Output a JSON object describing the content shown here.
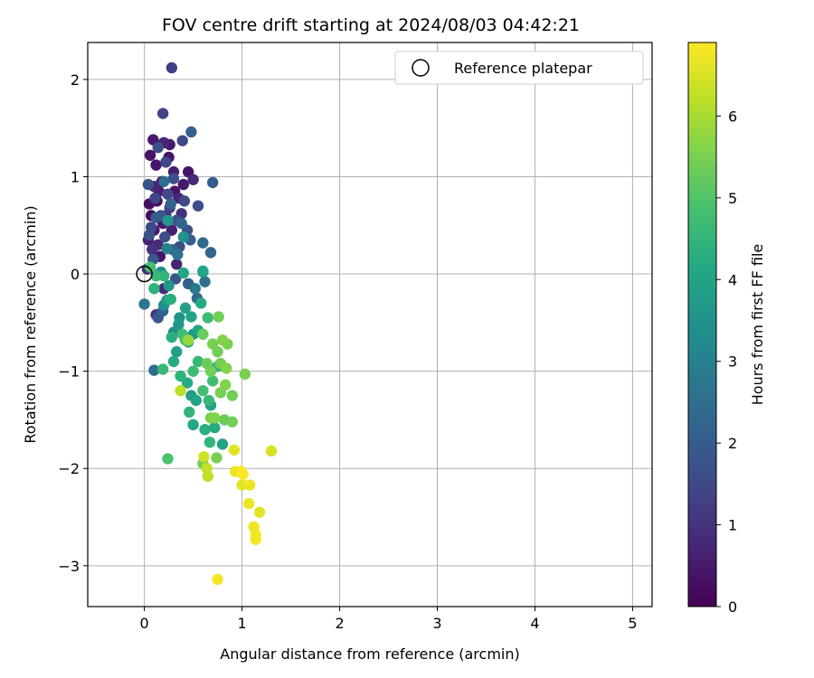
{
  "chart_data": {
    "type": "scatter",
    "title": "FOV centre drift starting at 2024/08/03 04:42:21",
    "xlabel": "Angular distance from reference (arcmin)",
    "ylabel": "Rotation from reference (arcmin)",
    "xlim": [
      -0.58,
      5.2
    ],
    "ylim": [
      -3.42,
      2.38
    ],
    "xticks": [
      0,
      1,
      2,
      3,
      4,
      5
    ],
    "yticks": [
      2,
      1,
      0,
      -1,
      -2,
      -3
    ],
    "grid": true,
    "legend": {
      "placement": "top-right",
      "entries": [
        "Reference platepar"
      ]
    },
    "reference_point": {
      "x": 0,
      "y": 0
    },
    "colorbar": {
      "label": "Hours from first FF file",
      "range": [
        0,
        6.9
      ],
      "ticks": [
        0,
        1,
        2,
        3,
        4,
        5,
        6
      ],
      "colormap": "viridis"
    },
    "points": [
      {
        "x": 0.05,
        "y": 0.72,
        "h": 0.3
      },
      {
        "x": 0.09,
        "y": 1.38,
        "h": 0.5
      },
      {
        "x": 0.12,
        "y": 1.12,
        "h": 0.4
      },
      {
        "x": 0.15,
        "y": 0.85,
        "h": 0.6
      },
      {
        "x": 0.2,
        "y": 1.35,
        "h": 0.7
      },
      {
        "x": 0.07,
        "y": 0.6,
        "h": 0.2
      },
      {
        "x": 0.1,
        "y": 0.45,
        "h": 0.5
      },
      {
        "x": 0.14,
        "y": 0.3,
        "h": 0.8
      },
      {
        "x": 0.03,
        "y": 0.05,
        "h": 0.9
      },
      {
        "x": 0.18,
        "y": 0.95,
        "h": 0.3
      },
      {
        "x": 0.25,
        "y": 1.2,
        "h": 0.4
      },
      {
        "x": 0.3,
        "y": 1.05,
        "h": 0.6
      },
      {
        "x": 0.35,
        "y": 0.78,
        "h": 0.7
      },
      {
        "x": 0.4,
        "y": 0.92,
        "h": 0.5
      },
      {
        "x": 0.45,
        "y": 1.05,
        "h": 0.4
      },
      {
        "x": 0.08,
        "y": 0.25,
        "h": 1.0
      },
      {
        "x": 0.12,
        "y": -0.42,
        "h": 1.0
      },
      {
        "x": 0.2,
        "y": -0.15,
        "h": 0.8
      },
      {
        "x": 0.06,
        "y": 1.22,
        "h": 0.35
      },
      {
        "x": 0.22,
        "y": 0.6,
        "h": 0.9
      },
      {
        "x": 0.28,
        "y": 0.45,
        "h": 0.6
      },
      {
        "x": 0.33,
        "y": 0.1,
        "h": 0.7
      },
      {
        "x": 0.04,
        "y": 0.35,
        "h": 0.6
      },
      {
        "x": 0.16,
        "y": 0.18,
        "h": 0.4
      },
      {
        "x": 0.26,
        "y": 1.33,
        "h": 0.5
      },
      {
        "x": 0.1,
        "y": 0.9,
        "h": 0.7
      },
      {
        "x": 0.38,
        "y": 0.62,
        "h": 0.9
      },
      {
        "x": 0.31,
        "y": 0.85,
        "h": 0.4
      },
      {
        "x": 0.19,
        "y": 0.52,
        "h": 0.5
      },
      {
        "x": 0.13,
        "y": 0.75,
        "h": 0.3
      },
      {
        "x": 0.5,
        "y": 0.97,
        "h": 0.8
      },
      {
        "x": 0.28,
        "y": 2.12,
        "h": 1.3
      },
      {
        "x": 0.19,
        "y": 1.65,
        "h": 1.4
      },
      {
        "x": 0.39,
        "y": 1.37,
        "h": 1.5
      },
      {
        "x": 0.48,
        "y": 1.46,
        "h": 2.1
      },
      {
        "x": 0.14,
        "y": 1.3,
        "h": 1.6
      },
      {
        "x": 0.22,
        "y": 1.15,
        "h": 1.5
      },
      {
        "x": 0.3,
        "y": 0.98,
        "h": 1.7
      },
      {
        "x": 0.04,
        "y": 0.92,
        "h": 1.8
      },
      {
        "x": 0.11,
        "y": 0.78,
        "h": 1.4
      },
      {
        "x": 0.26,
        "y": 0.68,
        "h": 1.3
      },
      {
        "x": 0.41,
        "y": 0.75,
        "h": 1.5
      },
      {
        "x": 0.55,
        "y": 0.7,
        "h": 1.6
      },
      {
        "x": 0.7,
        "y": 0.94,
        "h": 2.0
      },
      {
        "x": 0.17,
        "y": 0.6,
        "h": 1.9
      },
      {
        "x": 0.33,
        "y": 0.55,
        "h": 1.7
      },
      {
        "x": 0.38,
        "y": 0.52,
        "h": 2.2
      },
      {
        "x": 0.44,
        "y": 0.45,
        "h": 1.8
      },
      {
        "x": 0.07,
        "y": 0.48,
        "h": 1.5
      },
      {
        "x": 0.21,
        "y": 0.38,
        "h": 1.6
      },
      {
        "x": 0.29,
        "y": 0.25,
        "h": 2.3
      },
      {
        "x": 0.47,
        "y": 0.35,
        "h": 2.1
      },
      {
        "x": 0.6,
        "y": 0.32,
        "h": 2.4
      },
      {
        "x": 0.68,
        "y": 0.22,
        "h": 2.2
      },
      {
        "x": 0.09,
        "y": 0.15,
        "h": 1.9
      },
      {
        "x": 0.15,
        "y": 0.0,
        "h": 2.0
      },
      {
        "x": 0.32,
        "y": -0.05,
        "h": 1.8
      },
      {
        "x": 0.45,
        "y": -0.1,
        "h": 2.0
      },
      {
        "x": 0.54,
        "y": -0.25,
        "h": 2.3
      },
      {
        "x": 0.62,
        "y": -0.08,
        "h": 2.5
      },
      {
        "x": 0.0,
        "y": -0.31,
        "h": 2.7
      },
      {
        "x": 0.14,
        "y": -0.45,
        "h": 1.9
      },
      {
        "x": 0.19,
        "y": -0.38,
        "h": 2.1
      },
      {
        "x": 0.1,
        "y": -0.99,
        "h": 2.5
      },
      {
        "x": 0.36,
        "y": 0.28,
        "h": 1.6
      },
      {
        "x": 0.05,
        "y": 0.4,
        "h": 1.7
      },
      {
        "x": 0.24,
        "y": 0.82,
        "h": 1.5
      },
      {
        "x": 0.12,
        "y": 0.58,
        "h": 2.0
      },
      {
        "x": 0.34,
        "y": 0.2,
        "h": 2.6
      },
      {
        "x": 0.27,
        "y": 0.72,
        "h": 2.2
      },
      {
        "x": 0.2,
        "y": 0.95,
        "h": 2.4
      },
      {
        "x": 0.52,
        "y": -0.15,
        "h": 2.8
      },
      {
        "x": 0.6,
        "y": 0.02,
        "h": 3.2
      },
      {
        "x": 0.4,
        "y": 0.38,
        "h": 3.5
      },
      {
        "x": 0.23,
        "y": 0.26,
        "h": 3.0
      },
      {
        "x": 0.17,
        "y": 0.02,
        "h": 3.3
      },
      {
        "x": 0.25,
        "y": -0.12,
        "h": 3.6
      },
      {
        "x": 0.23,
        "y": -0.27,
        "h": 3.8
      },
      {
        "x": 0.3,
        "y": -0.6,
        "h": 3.4
      },
      {
        "x": 0.35,
        "y": -0.52,
        "h": 3.7
      },
      {
        "x": 0.42,
        "y": -0.35,
        "h": 3.9
      },
      {
        "x": 0.48,
        "y": -0.44,
        "h": 4.0
      },
      {
        "x": 0.5,
        "y": -0.62,
        "h": 3.6
      },
      {
        "x": 0.55,
        "y": -0.58,
        "h": 4.1
      },
      {
        "x": 0.2,
        "y": -0.32,
        "h": 3.3
      },
      {
        "x": 0.33,
        "y": -0.8,
        "h": 3.9
      },
      {
        "x": 0.3,
        "y": -0.9,
        "h": 4.2
      },
      {
        "x": 0.45,
        "y": -0.7,
        "h": 4.3
      },
      {
        "x": 0.37,
        "y": -1.05,
        "h": 4.4
      },
      {
        "x": 0.44,
        "y": -1.12,
        "h": 4.2
      },
      {
        "x": 0.48,
        "y": -1.25,
        "h": 3.8
      },
      {
        "x": 0.53,
        "y": -1.3,
        "h": 4.0
      },
      {
        "x": 0.46,
        "y": -1.42,
        "h": 4.5
      },
      {
        "x": 0.5,
        "y": -1.55,
        "h": 4.1
      },
      {
        "x": 0.62,
        "y": -1.6,
        "h": 4.3
      },
      {
        "x": 0.66,
        "y": -1.3,
        "h": 4.6
      },
      {
        "x": 0.7,
        "y": -1.1,
        "h": 4.8
      },
      {
        "x": 0.75,
        "y": -0.95,
        "h": 4.4
      },
      {
        "x": 0.68,
        "y": -1.35,
        "h": 4.0
      },
      {
        "x": 0.72,
        "y": -1.58,
        "h": 4.2
      },
      {
        "x": 0.8,
        "y": -1.75,
        "h": 4.0
      },
      {
        "x": 0.67,
        "y": -1.73,
        "h": 4.5
      },
      {
        "x": 0.27,
        "y": -0.26,
        "h": 4.3
      },
      {
        "x": 0.4,
        "y": 0.01,
        "h": 4.1
      },
      {
        "x": 0.2,
        "y": -0.02,
        "h": 4.5
      },
      {
        "x": 0.12,
        "y": -0.02,
        "h": 4.6
      },
      {
        "x": 0.06,
        "y": 0.07,
        "h": 4.8
      },
      {
        "x": 0.6,
        "y": 0.03,
        "h": 4.0
      },
      {
        "x": 0.58,
        "y": -0.3,
        "h": 4.2
      },
      {
        "x": 0.24,
        "y": 0.55,
        "h": 3.6
      },
      {
        "x": 0.36,
        "y": -0.45,
        "h": 3.5
      },
      {
        "x": 0.19,
        "y": -0.98,
        "h": 4.6
      },
      {
        "x": 0.24,
        "y": -1.9,
        "h": 4.9
      },
      {
        "x": 0.42,
        "y": -0.68,
        "h": 4.9
      },
      {
        "x": 0.5,
        "y": -1.0,
        "h": 4.7
      },
      {
        "x": 0.55,
        "y": -0.9,
        "h": 4.6
      },
      {
        "x": 0.6,
        "y": -1.2,
        "h": 4.8
      },
      {
        "x": 0.65,
        "y": -0.45,
        "h": 4.7
      },
      {
        "x": 0.1,
        "y": -0.15,
        "h": 4.4
      },
      {
        "x": 0.28,
        "y": -0.65,
        "h": 4.3
      },
      {
        "x": 0.39,
        "y": -0.62,
        "h": 4.7
      },
      {
        "x": 0.76,
        "y": -0.44,
        "h": 5.4
      },
      {
        "x": 0.6,
        "y": -0.62,
        "h": 5.3
      },
      {
        "x": 0.7,
        "y": -0.72,
        "h": 5.5
      },
      {
        "x": 0.8,
        "y": -0.68,
        "h": 5.6
      },
      {
        "x": 0.85,
        "y": -0.72,
        "h": 5.5
      },
      {
        "x": 0.75,
        "y": -0.8,
        "h": 5.4
      },
      {
        "x": 0.64,
        "y": -0.92,
        "h": 5.3
      },
      {
        "x": 0.78,
        "y": -0.92,
        "h": 5.5
      },
      {
        "x": 0.84,
        "y": -0.97,
        "h": 5.6
      },
      {
        "x": 0.68,
        "y": -1.0,
        "h": 5.4
      },
      {
        "x": 0.83,
        "y": -1.14,
        "h": 5.6
      },
      {
        "x": 0.78,
        "y": -1.22,
        "h": 5.5
      },
      {
        "x": 0.9,
        "y": -1.25,
        "h": 5.4
      },
      {
        "x": 1.03,
        "y": -1.03,
        "h": 5.5
      },
      {
        "x": 0.72,
        "y": -1.48,
        "h": 5.6
      },
      {
        "x": 0.68,
        "y": -1.48,
        "h": 5.5
      },
      {
        "x": 0.82,
        "y": -1.5,
        "h": 5.3
      },
      {
        "x": 0.9,
        "y": -1.52,
        "h": 5.4
      },
      {
        "x": 0.74,
        "y": -1.89,
        "h": 5.5
      },
      {
        "x": 0.6,
        "y": -1.95,
        "h": 5.4
      },
      {
        "x": 0.37,
        "y": -1.2,
        "h": 6.2
      },
      {
        "x": 0.45,
        "y": -0.68,
        "h": 5.8
      },
      {
        "x": 0.61,
        "y": -1.88,
        "h": 6.4
      },
      {
        "x": 0.64,
        "y": -2.0,
        "h": 6.3
      },
      {
        "x": 0.65,
        "y": -2.08,
        "h": 6.2
      },
      {
        "x": 0.92,
        "y": -1.81,
        "h": 6.6
      },
      {
        "x": 0.93,
        "y": -2.03,
        "h": 6.7
      },
      {
        "x": 0.99,
        "y": -2.03,
        "h": 6.8
      },
      {
        "x": 1.01,
        "y": -2.06,
        "h": 6.9
      },
      {
        "x": 1.0,
        "y": -2.17,
        "h": 6.6
      },
      {
        "x": 1.08,
        "y": -2.17,
        "h": 6.7
      },
      {
        "x": 1.07,
        "y": -2.36,
        "h": 6.7
      },
      {
        "x": 1.18,
        "y": -2.45,
        "h": 6.6
      },
      {
        "x": 1.3,
        "y": -1.82,
        "h": 6.5
      },
      {
        "x": 1.12,
        "y": -2.6,
        "h": 6.7
      },
      {
        "x": 1.14,
        "y": -2.68,
        "h": 6.8
      },
      {
        "x": 1.14,
        "y": -2.73,
        "h": 6.8
      },
      {
        "x": 0.75,
        "y": -3.14,
        "h": 6.8
      }
    ]
  }
}
